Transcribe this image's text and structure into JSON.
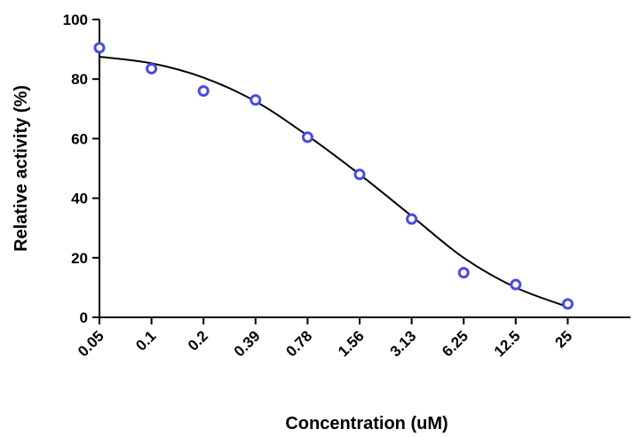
{
  "chart_data": {
    "type": "scatter",
    "xlabel": "Concentration (uM)",
    "ylabel": "Relative activity (%)",
    "categories": [
      "0.05",
      "0.1",
      "0.2",
      "0.39",
      "0.78",
      "1.56",
      "3.13",
      "6.25",
      "12.5",
      "25"
    ],
    "ylim": [
      0,
      100
    ],
    "yticks": [
      "0",
      "20",
      "40",
      "60",
      "80",
      "100"
    ],
    "series": [
      {
        "marker": "open-circle",
        "color": "#4a4ae6",
        "values": [
          90.5,
          83.5,
          76,
          73,
          60.5,
          48,
          33,
          15,
          11,
          4.5
        ]
      }
    ],
    "fit_curve": {
      "color": "#000000",
      "values": [
        87.5,
        85.3,
        80.5,
        72.5,
        61,
        48,
        34,
        20,
        10,
        3.5
      ]
    }
  }
}
